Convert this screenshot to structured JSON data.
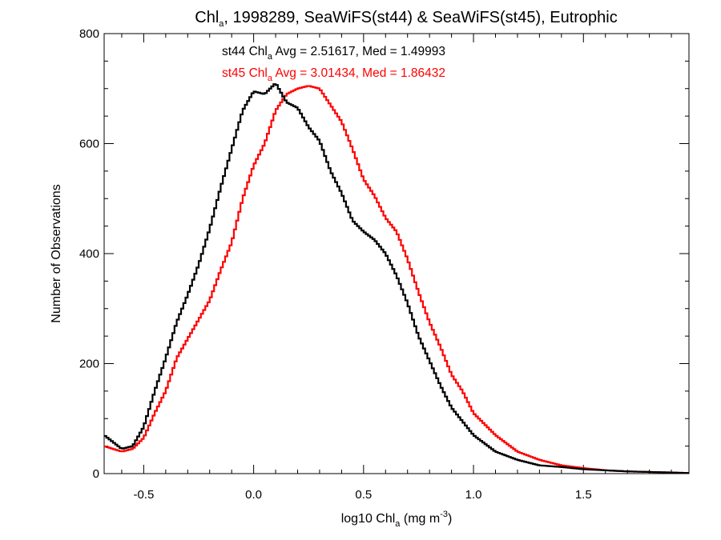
{
  "chart_data": {
    "type": "line",
    "title_parts": [
      "Chl",
      "a",
      ", 1998289, SeaWiFS(st44) & SeaWiFS(st45), Eutrophic"
    ],
    "xlabel_parts": [
      "log10 Chl",
      "a",
      " (mg m",
      "-3",
      ")"
    ],
    "ylabel": "Number of Observations",
    "xlim": [
      -0.68,
      1.98
    ],
    "ylim": [
      0,
      800
    ],
    "xticks": [
      -0.5,
      0.0,
      0.5,
      1.0,
      1.5
    ],
    "xtick_labels": [
      "-0.5",
      "0.0",
      "0.5",
      "1.0",
      "1.5"
    ],
    "yticks": [
      0,
      200,
      400,
      600,
      800
    ],
    "ytick_labels": [
      "0",
      "200",
      "400",
      "600",
      "800"
    ],
    "x_minor_step": 0.1,
    "y_minor_step": 50,
    "grid": false,
    "step": "histogram",
    "annotations": [
      {
        "parts": [
          "st44 Chl",
          "a",
          " Avg = 2.51617, Med = 1.49993"
        ],
        "color": "#000000"
      },
      {
        "parts": [
          "st45 Chl",
          "a",
          " Avg = 3.01434, Med = 1.86432"
        ],
        "color": "#ff0000"
      }
    ],
    "series": [
      {
        "color": "#000000",
        "x": [
          -0.68,
          -0.6,
          -0.55,
          -0.5,
          -0.45,
          -0.4,
          -0.35,
          -0.3,
          -0.25,
          -0.2,
          -0.15,
          -0.1,
          -0.05,
          0.0,
          0.05,
          0.1,
          0.15,
          0.2,
          0.25,
          0.3,
          0.35,
          0.4,
          0.45,
          0.5,
          0.55,
          0.6,
          0.65,
          0.7,
          0.75,
          0.8,
          0.85,
          0.9,
          0.95,
          1.0,
          1.1,
          1.2,
          1.3,
          1.4,
          1.5,
          1.6,
          1.7,
          1.8,
          1.9,
          1.98
        ],
        "y": [
          70,
          45,
          50,
          85,
          150,
          210,
          275,
          325,
          380,
          445,
          520,
          590,
          660,
          695,
          690,
          710,
          675,
          665,
          630,
          605,
          550,
          510,
          460,
          440,
          425,
          400,
          360,
          310,
          250,
          205,
          160,
          120,
          95,
          70,
          40,
          25,
          15,
          12,
          8,
          6,
          4,
          3,
          2,
          1
        ]
      },
      {
        "color": "#ff0000",
        "x": [
          -0.68,
          -0.6,
          -0.55,
          -0.5,
          -0.45,
          -0.4,
          -0.35,
          -0.3,
          -0.25,
          -0.2,
          -0.15,
          -0.1,
          -0.05,
          0.0,
          0.05,
          0.1,
          0.15,
          0.2,
          0.25,
          0.3,
          0.35,
          0.4,
          0.45,
          0.5,
          0.55,
          0.6,
          0.65,
          0.7,
          0.75,
          0.8,
          0.85,
          0.9,
          0.95,
          1.0,
          1.1,
          1.2,
          1.3,
          1.4,
          1.5,
          1.6,
          1.7,
          1.8,
          1.9,
          1.98
        ],
        "y": [
          50,
          40,
          45,
          65,
          110,
          150,
          210,
          245,
          280,
          315,
          370,
          420,
          500,
          560,
          600,
          660,
          690,
          700,
          705,
          700,
          670,
          640,
          590,
          535,
          505,
          465,
          440,
          390,
          330,
          275,
          230,
          180,
          150,
          110,
          70,
          40,
          25,
          15,
          10,
          6,
          4,
          3,
          2,
          1
        ]
      }
    ]
  }
}
